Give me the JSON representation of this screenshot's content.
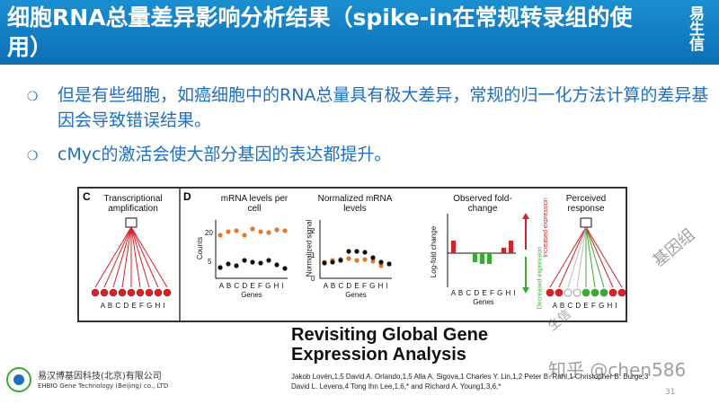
{
  "header": {
    "title": "细胞RNA总量差异影响分析结果（spike-in在常规转录组的使用）",
    "logo_text": "易生信"
  },
  "bullets": [
    "但是有些细胞，如癌细胞中的RNA总量具有极大差异，常规的归一化方法计算的差异基因会导致错误结果。",
    "cMyc的激活会使大部分基因的表达都提升。"
  ],
  "figure": {
    "panel_c_label": "C",
    "panel_c_title": "Transcriptional amplification",
    "panel_d_label": "D",
    "mrna_title": "mRNA levels per cell",
    "mrna_ylabel": "Counts",
    "mrna_ticks": [
      "20",
      "5"
    ],
    "norm_title": "Normalized mRNA levels",
    "norm_ylabel": "Normalized signal",
    "norm_ticks": [
      "2",
      "1",
      "0"
    ],
    "fold_title": "Observed fold-change",
    "fold_ylabel": "Log-fold change",
    "perceived_title": "Perceived response",
    "increased_label": "Increased expression",
    "decreased_label": "Decreased expression",
    "genes_letters": "A B C D E F G H I",
    "genes_label": "Genes"
  },
  "paper": {
    "title_line1": "Revisiting Global Gene",
    "title_line2": "Expression Analysis",
    "authors_line1": "Jakob Lovén,1,5 David A. Orlando,1,5 Alla A. Sigova,1 Charles Y. Lin,1,2 Peter B. Rahl,1 Christopher B. Burge,3",
    "authors_line2": "David L. Levens,4 Tong Ihn Lee,1,6,* and Richard A. Young1,3,6,*"
  },
  "company": {
    "name_cn": "易汉博基因科技(北京)有限公司",
    "name_en": "EHBIO Gene Technology (Beijing) co., LTD"
  },
  "page_number": "31",
  "watermarks": {
    "zhihu": "知乎 @chen586",
    "diagonal1": "基因组",
    "diagonal2": "生信"
  },
  "colors": {
    "header_blue": "#0d6fb5",
    "bullet_blue": "#1f6fbf",
    "orange": "#e8772e",
    "red": "#d2232a",
    "green": "#3aaa35"
  }
}
